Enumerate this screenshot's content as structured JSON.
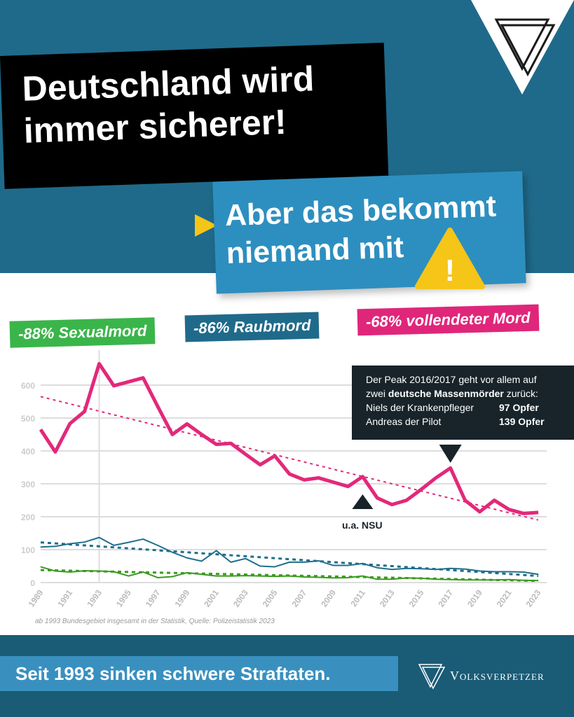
{
  "header": {
    "title_line1": "Deutschland wird",
    "title_line2": "immer sicherer!",
    "subtitle_line1": "Aber das bekommt",
    "subtitle_line2": "niemand mit",
    "warning_glyph": "!"
  },
  "labels": {
    "sexualmord": "-88% Sexualmord",
    "raubmord": "-86% Raubmord",
    "mord": "-68% vollendeter Mord"
  },
  "colors": {
    "pink": "#e3287a",
    "blue": "#1f6e8c",
    "green": "#3a9a1e",
    "header": "#1f6a8a",
    "yellow": "#f5c518"
  },
  "annotation": {
    "line1": "Der Peak 2016/2017 geht vor allem auf",
    "line2_pre": "zwei ",
    "line2_bold": "deutsche Massenmörder",
    "line2_post": " zurück:",
    "r1_name": "Niels der Krankenpfleger",
    "r1_val": "97 Opfer",
    "r2_name": "Andreas der Pilot",
    "r2_val": "139 Opfer",
    "nsu": "u.a. NSU"
  },
  "source": "ab 1993 Bundesgebiet insgesamt in der Statistik,  Quelle: Polizeistatistik 2023",
  "footer": {
    "tagline": "Seit 1993 sinken schwere Straftaten.",
    "brand": "Volksverpetzer"
  },
  "chart_data": {
    "type": "line",
    "x": [
      1989,
      1990,
      1991,
      1992,
      1993,
      1994,
      1995,
      1996,
      1997,
      1998,
      1999,
      2000,
      2001,
      2002,
      2003,
      2004,
      2005,
      2006,
      2007,
      2008,
      2009,
      2010,
      2011,
      2012,
      2013,
      2014,
      2015,
      2016,
      2017,
      2018,
      2019,
      2020,
      2021,
      2022,
      2023
    ],
    "xticks": [
      "1989",
      "1991",
      "1993",
      "1995",
      "1997",
      "1999",
      "2001",
      "2003",
      "2005",
      "2007",
      "2009",
      "2011",
      "2013",
      "2015",
      "2017",
      "2019",
      "2021",
      "2023"
    ],
    "yticks": [
      "0",
      "100",
      "200",
      "300",
      "400",
      "500",
      "600"
    ],
    "ylim": [
      0,
      700
    ],
    "grid": true,
    "series": [
      {
        "name": "vollendeter Mord",
        "color": "#e3287a",
        "values": [
          465,
          397,
          483,
          520,
          665,
          598,
          610,
          622,
          535,
          450,
          482,
          450,
          420,
          423,
          390,
          358,
          385,
          330,
          312,
          318,
          305,
          292,
          322,
          257,
          237,
          250,
          283,
          318,
          348,
          250,
          215,
          250,
          222,
          210,
          213
        ],
        "trend": [
          565,
          190
        ]
      },
      {
        "name": "Raubmord",
        "color": "#1f6e8c",
        "values": [
          108,
          110,
          118,
          123,
          137,
          113,
          122,
          132,
          113,
          92,
          75,
          65,
          97,
          62,
          73,
          50,
          48,
          62,
          62,
          66,
          52,
          52,
          58,
          45,
          40,
          43,
          42,
          40,
          43,
          41,
          35,
          33,
          33,
          32,
          25
        ],
        "trend": [
          122,
          20
        ]
      },
      {
        "name": "Sexualmord",
        "color": "#3a9a1e",
        "values": [
          48,
          35,
          32,
          36,
          35,
          33,
          20,
          32,
          15,
          18,
          30,
          25,
          20,
          20,
          21,
          20,
          19,
          20,
          17,
          16,
          14,
          15,
          20,
          10,
          10,
          14,
          13,
          10,
          9,
          8,
          8,
          8,
          9,
          7,
          6
        ],
        "trend": [
          38,
          5
        ]
      }
    ]
  }
}
